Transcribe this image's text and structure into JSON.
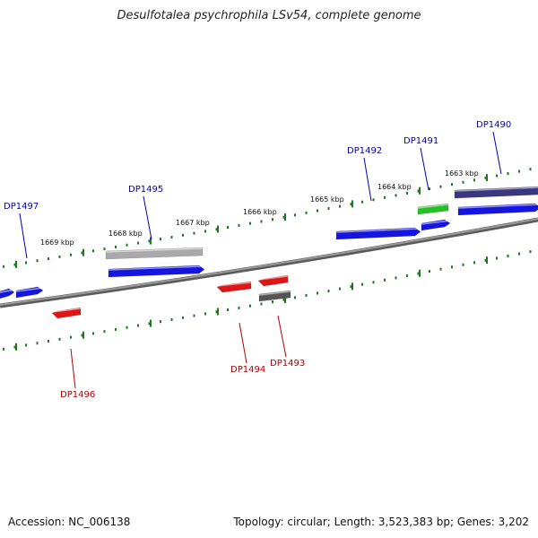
{
  "title": "Desulfotalea psychrophila LSv54, complete genome",
  "footer": {
    "accession": "Accession: NC_006138",
    "summary": "Topology: circular; Length: 3,523,383 bp; Genes: 3,202"
  },
  "colors": {
    "backbone": "#7a7a7a",
    "tick": "#1c7a1c",
    "forward_label": "#0000b0",
    "reverse_label": "#b00000"
  },
  "kbp_labels": [
    "1669 kbp",
    "1668 kbp",
    "1667 kbp",
    "1666 kbp",
    "1665 kbp",
    "1664 kbp",
    "1663 kbp"
  ],
  "gene_labels": {
    "forward": [
      "DP1497",
      "DP1495",
      "DP1492",
      "DP1491",
      "DP1490"
    ],
    "reverse": [
      "DP1496",
      "DP1494",
      "DP1493"
    ]
  },
  "features": [
    {
      "name": "gene-bar",
      "color": "#1515e0",
      "strand": "forward"
    },
    {
      "name": "gene-bar",
      "color": "#1515e0",
      "strand": "forward"
    },
    {
      "name": "gene-bar",
      "color": "#a9a9a9",
      "strand": "forward"
    },
    {
      "name": "gene-bar",
      "color": "#1515e0",
      "strand": "forward"
    },
    {
      "name": "gene-bar",
      "color": "#1515e0",
      "strand": "forward"
    },
    {
      "name": "gene-bar",
      "color": "#25c025",
      "strand": "forward"
    },
    {
      "name": "gene-bar",
      "color": "#1515e0",
      "strand": "forward"
    },
    {
      "name": "gene-bar",
      "color": "#3a3680",
      "strand": "forward"
    },
    {
      "name": "gene-bar",
      "color": "#1515e0",
      "strand": "forward"
    },
    {
      "name": "gene-bar",
      "color": "#e01515",
      "strand": "reverse"
    },
    {
      "name": "gene-bar",
      "color": "#e01515",
      "strand": "reverse"
    },
    {
      "name": "gene-bar",
      "color": "#e01515",
      "strand": "reverse"
    },
    {
      "name": "gene-bar",
      "color": "#555555",
      "strand": "reverse"
    }
  ]
}
